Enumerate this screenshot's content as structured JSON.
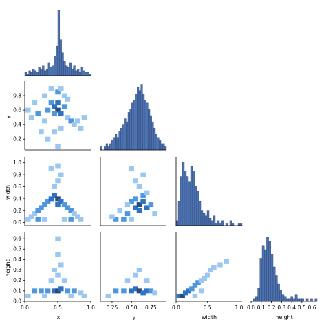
{
  "chart_data": {
    "type": "pairplot-corner",
    "variables": [
      "x",
      "y",
      "width",
      "height"
    ],
    "colors": {
      "bar_fill": "#4c72b0",
      "hist_light": "#8ec1f0",
      "hist_dark": "#2b3e6b",
      "axis": "#000000"
    },
    "hist_x": {
      "bin_edges": [
        0,
        1
      ],
      "counts": [
        2,
        1,
        3,
        2,
        4,
        3,
        2,
        5,
        4,
        6,
        3,
        4,
        8,
        5,
        6,
        12,
        18,
        40,
        22,
        14,
        9,
        6,
        5,
        8,
        4,
        6,
        3,
        4,
        2,
        5,
        3,
        2,
        2,
        1
      ],
      "ymax": 42
    },
    "hist_y": {
      "bin_edges": [
        0.1,
        0.95
      ],
      "counts": [
        1,
        0,
        1,
        2,
        1,
        2,
        3,
        4,
        5,
        4,
        6,
        7,
        8,
        10,
        9,
        12,
        13,
        15,
        16,
        18,
        20,
        19,
        21,
        18,
        16,
        15,
        13,
        11,
        9,
        7,
        5,
        4,
        3,
        2,
        2,
        1
      ],
      "ymax": 22
    },
    "hist_width": {
      "bin_edges": [
        0.0,
        1.05
      ],
      "counts": [
        2,
        10,
        20,
        26,
        22,
        20,
        18,
        24,
        22,
        16,
        14,
        10,
        6,
        5,
        4,
        6,
        3,
        2,
        4,
        1,
        2,
        1,
        2,
        0,
        1,
        0,
        2,
        1,
        0,
        0,
        1,
        1
      ],
      "ymax": 28
    },
    "hist_height": {
      "bin_edges": [
        0.0,
        0.65
      ],
      "counts": [
        0,
        1,
        2,
        6,
        20,
        26,
        24,
        30,
        28,
        22,
        16,
        12,
        8,
        5,
        3,
        2,
        1,
        1,
        2,
        1,
        3,
        1,
        1,
        1,
        0,
        1,
        0,
        1,
        0,
        1
      ],
      "ymax": 32
    },
    "scatter_y_vs_x": {
      "xlim": [
        0,
        1
      ],
      "ylim": [
        0.05,
        1.0
      ],
      "xticks": [
        "0.0",
        "0.5",
        "1.0"
      ],
      "yticks": [
        "0.2",
        "0.4",
        "0.6",
        "0.8"
      ],
      "cells": [
        [
          0.1,
          0.5,
          1
        ],
        [
          0.2,
          0.55,
          2
        ],
        [
          0.3,
          0.45,
          1
        ],
        [
          0.35,
          0.6,
          2
        ],
        [
          0.4,
          0.7,
          2
        ],
        [
          0.45,
          0.65,
          3
        ],
        [
          0.5,
          0.6,
          4
        ],
        [
          0.55,
          0.55,
          3
        ],
        [
          0.5,
          0.7,
          3
        ],
        [
          0.45,
          0.55,
          2
        ],
        [
          0.6,
          0.65,
          2
        ],
        [
          0.65,
          0.5,
          1
        ],
        [
          0.7,
          0.45,
          2
        ],
        [
          0.75,
          0.4,
          1
        ],
        [
          0.8,
          0.45,
          1
        ],
        [
          0.85,
          0.35,
          1
        ],
        [
          0.9,
          0.5,
          1
        ],
        [
          0.3,
          0.8,
          1
        ],
        [
          0.4,
          0.9,
          1
        ],
        [
          0.5,
          0.85,
          2
        ],
        [
          0.55,
          0.9,
          1
        ],
        [
          0.6,
          0.8,
          1
        ],
        [
          0.25,
          0.3,
          1
        ],
        [
          0.35,
          0.2,
          1
        ],
        [
          0.45,
          0.3,
          1
        ],
        [
          0.55,
          0.35,
          1
        ],
        [
          0.5,
          0.1,
          1
        ],
        [
          0.15,
          0.7,
          1
        ],
        [
          0.05,
          0.6,
          1
        ],
        [
          0.65,
          0.75,
          1
        ]
      ]
    },
    "scatter_width_vs_x": {
      "xlim": [
        0,
        1
      ],
      "ylim": [
        -0.05,
        1.1
      ],
      "xticks": [
        "0.0",
        "0.5",
        "1.0"
      ],
      "yticks": [
        "0.0",
        "0.2",
        "0.4",
        "0.6",
        "0.8",
        "1.0"
      ],
      "cells": [
        [
          0.05,
          0.05,
          1
        ],
        [
          0.1,
          0.1,
          1
        ],
        [
          0.15,
          0.15,
          1
        ],
        [
          0.2,
          0.2,
          2
        ],
        [
          0.25,
          0.25,
          2
        ],
        [
          0.3,
          0.3,
          2
        ],
        [
          0.35,
          0.35,
          2
        ],
        [
          0.4,
          0.4,
          3
        ],
        [
          0.45,
          0.45,
          3
        ],
        [
          0.5,
          0.4,
          4
        ],
        [
          0.5,
          0.3,
          3
        ],
        [
          0.55,
          0.35,
          3
        ],
        [
          0.6,
          0.3,
          2
        ],
        [
          0.65,
          0.25,
          2
        ],
        [
          0.7,
          0.2,
          2
        ],
        [
          0.75,
          0.15,
          1
        ],
        [
          0.8,
          0.1,
          1
        ],
        [
          0.85,
          0.05,
          1
        ],
        [
          0.45,
          0.6,
          1
        ],
        [
          0.5,
          0.7,
          1
        ],
        [
          0.55,
          0.8,
          1
        ],
        [
          0.4,
          0.9,
          1
        ],
        [
          0.5,
          0.95,
          1
        ],
        [
          0.3,
          0.05,
          1
        ],
        [
          0.6,
          0.05,
          1
        ],
        [
          0.2,
          0.05,
          2
        ],
        [
          0.7,
          0.05,
          2
        ]
      ]
    },
    "scatter_width_vs_y": {
      "xlim": [
        0.1,
        0.95
      ],
      "ylim": [
        -0.05,
        1.1
      ],
      "xticks": [
        "0.25",
        "0.50",
        "0.75"
      ],
      "yticks": [],
      "cells": [
        [
          0.3,
          0.05,
          2
        ],
        [
          0.4,
          0.05,
          2
        ],
        [
          0.5,
          0.05,
          1
        ],
        [
          0.45,
          0.15,
          2
        ],
        [
          0.55,
          0.25,
          3
        ],
        [
          0.6,
          0.3,
          4
        ],
        [
          0.65,
          0.35,
          3
        ],
        [
          0.7,
          0.25,
          3
        ],
        [
          0.75,
          0.3,
          2
        ],
        [
          0.6,
          0.2,
          3
        ],
        [
          0.55,
          0.4,
          2
        ],
        [
          0.5,
          0.35,
          2
        ],
        [
          0.65,
          0.45,
          2
        ],
        [
          0.7,
          0.5,
          1
        ],
        [
          0.45,
          0.3,
          1
        ],
        [
          0.35,
          0.2,
          1
        ],
        [
          0.6,
          0.6,
          1
        ],
        [
          0.55,
          0.7,
          1
        ],
        [
          0.65,
          0.8,
          1
        ],
        [
          0.5,
          0.9,
          1
        ],
        [
          0.8,
          0.15,
          1
        ],
        [
          0.25,
          0.1,
          1
        ]
      ]
    },
    "scatter_height_vs_x": {
      "xlim": [
        0,
        1
      ],
      "ylim": [
        0.0,
        0.66
      ],
      "xticks": [
        "0.0",
        "0.5",
        "1.0"
      ],
      "yticks": [
        "0.0",
        "0.1",
        "0.2",
        "0.3",
        "0.4",
        "0.5",
        "0.6"
      ],
      "cells": [
        [
          0.05,
          0.05,
          1
        ],
        [
          0.15,
          0.1,
          2
        ],
        [
          0.25,
          0.1,
          2
        ],
        [
          0.35,
          0.1,
          2
        ],
        [
          0.45,
          0.1,
          3
        ],
        [
          0.5,
          0.1,
          4
        ],
        [
          0.55,
          0.12,
          3
        ],
        [
          0.65,
          0.1,
          2
        ],
        [
          0.75,
          0.1,
          2
        ],
        [
          0.85,
          0.08,
          1
        ],
        [
          0.4,
          0.2,
          1
        ],
        [
          0.5,
          0.25,
          1
        ],
        [
          0.6,
          0.2,
          1
        ],
        [
          0.45,
          0.3,
          1
        ],
        [
          0.55,
          0.35,
          1
        ],
        [
          0.5,
          0.45,
          1
        ],
        [
          0.5,
          0.6,
          1
        ],
        [
          0.3,
          0.05,
          1
        ],
        [
          0.7,
          0.05,
          1
        ],
        [
          0.9,
          0.05,
          1
        ]
      ]
    },
    "scatter_height_vs_y": {
      "xlim": [
        0.1,
        0.95
      ],
      "ylim": [
        0.0,
        0.66
      ],
      "xticks": [
        "0.25",
        "0.50",
        "0.75"
      ],
      "yticks": [],
      "cells": [
        [
          0.3,
          0.1,
          2
        ],
        [
          0.4,
          0.1,
          2
        ],
        [
          0.5,
          0.1,
          3
        ],
        [
          0.55,
          0.12,
          3
        ],
        [
          0.6,
          0.1,
          4
        ],
        [
          0.65,
          0.08,
          3
        ],
        [
          0.7,
          0.1,
          3
        ],
        [
          0.75,
          0.1,
          2
        ],
        [
          0.8,
          0.08,
          1
        ],
        [
          0.45,
          0.2,
          1
        ],
        [
          0.55,
          0.25,
          1
        ],
        [
          0.6,
          0.3,
          1
        ],
        [
          0.7,
          0.2,
          1
        ],
        [
          0.2,
          0.05,
          1
        ]
      ]
    },
    "scatter_height_vs_width": {
      "xlim": [
        0.0,
        1.05
      ],
      "ylim": [
        0.0,
        0.66
      ],
      "xticks": [
        "0.0",
        "0.5",
        "1.0"
      ],
      "yticks": [],
      "cells": [
        [
          0.05,
          0.05,
          3
        ],
        [
          0.1,
          0.05,
          4
        ],
        [
          0.15,
          0.08,
          3
        ],
        [
          0.2,
          0.1,
          3
        ],
        [
          0.25,
          0.12,
          2
        ],
        [
          0.3,
          0.15,
          2
        ],
        [
          0.35,
          0.18,
          2
        ],
        [
          0.4,
          0.2,
          1
        ],
        [
          0.45,
          0.22,
          1
        ],
        [
          0.5,
          0.25,
          1
        ],
        [
          0.55,
          0.3,
          1
        ],
        [
          0.6,
          0.32,
          1
        ],
        [
          0.7,
          0.35,
          1
        ],
        [
          0.8,
          0.38,
          1
        ],
        [
          0.3,
          0.05,
          1
        ],
        [
          0.4,
          0.1,
          1
        ]
      ]
    },
    "axis_labels": {
      "x": "x",
      "y": "y",
      "width": "width",
      "height": "height"
    }
  }
}
